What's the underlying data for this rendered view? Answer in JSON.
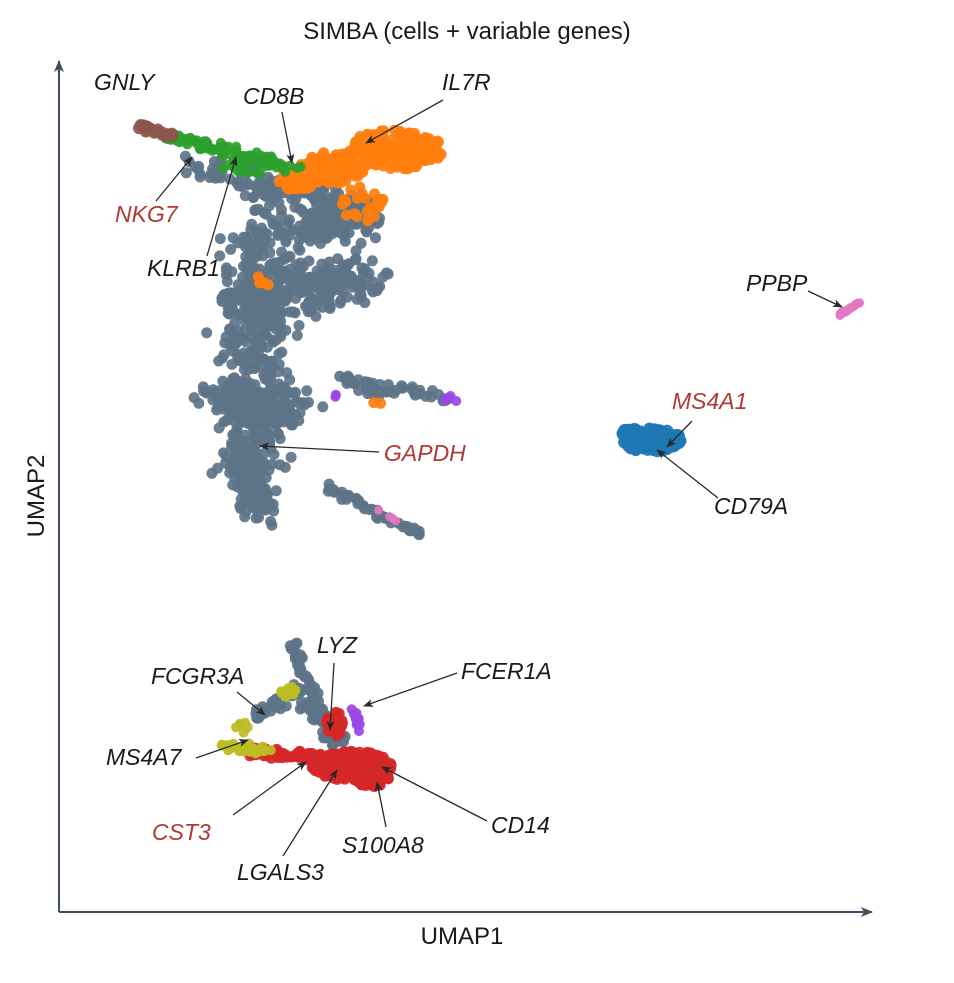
{
  "chart_data": {
    "type": "scatter",
    "title": "SIMBA (cells + variable genes)",
    "xlabel": "UMAP1",
    "ylabel": "UMAP2",
    "grid": false,
    "legend": "none",
    "colors": {
      "axis": "#3e4f63",
      "cell": "#5d7488",
      "black_label": "#1a1a1a",
      "red_label": "#b03a33",
      "brown": "#8c564b",
      "green": "#2ca02c",
      "orange": "#ff7f0e",
      "blue": "#1f77b4",
      "pink": "#e377c2",
      "purple": "#9b45e6",
      "red": "#d62728",
      "olive": "#bcbd22"
    },
    "clusters": [
      {
        "id": "t-cells",
        "color": "cell",
        "count": 1300
      },
      {
        "id": "il7r-group",
        "color": "orange",
        "count": 420
      },
      {
        "id": "nkg7-group",
        "color": "green",
        "count": 120
      },
      {
        "id": "gnly-group",
        "color": "brown",
        "count": 28
      },
      {
        "id": "b-cells",
        "color": "blue",
        "count": 160
      },
      {
        "id": "platelets",
        "color": "pink",
        "count": 30
      },
      {
        "id": "monocytes",
        "color": "cell",
        "count": 150
      },
      {
        "id": "cd14-group",
        "color": "red",
        "count": 420
      },
      {
        "id": "fcgr3a-group",
        "color": "olive",
        "count": 55
      },
      {
        "id": "fcer1a-group",
        "color": "purple",
        "count": 18
      }
    ],
    "annotations": [
      {
        "text": "GNLY",
        "color": "black_label"
      },
      {
        "text": "CD8B",
        "color": "black_label"
      },
      {
        "text": "IL7R",
        "color": "black_label"
      },
      {
        "text": "NKG7",
        "color": "red_label"
      },
      {
        "text": "KLRB1",
        "color": "black_label"
      },
      {
        "text": "PPBP",
        "color": "black_label"
      },
      {
        "text": "MS4A1",
        "color": "red_label"
      },
      {
        "text": "GAPDH",
        "color": "red_label"
      },
      {
        "text": "CD79A",
        "color": "black_label"
      },
      {
        "text": "LYZ",
        "color": "black_label"
      },
      {
        "text": "FCGR3A",
        "color": "black_label"
      },
      {
        "text": "FCER1A",
        "color": "black_label"
      },
      {
        "text": "MS4A7",
        "color": "black_label"
      },
      {
        "text": "CST3",
        "color": "red_label"
      },
      {
        "text": "CD14",
        "color": "black_label"
      },
      {
        "text": "S100A8",
        "color": "black_label"
      },
      {
        "text": "LGALS3",
        "color": "black_label"
      }
    ]
  }
}
